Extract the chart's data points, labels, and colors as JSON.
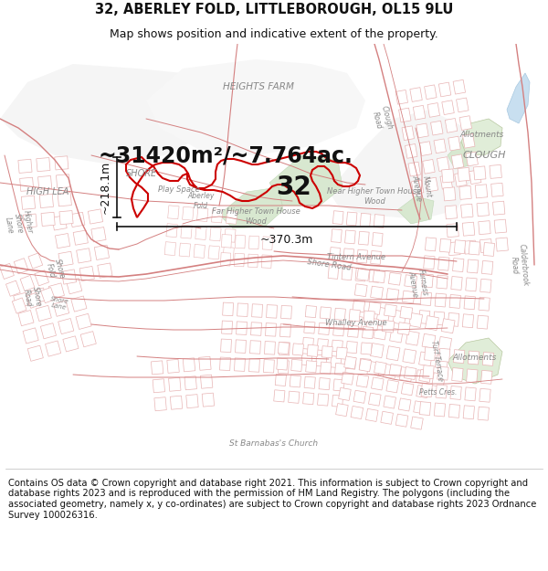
{
  "title_line1": "32, ABERLEY FOLD, LITTLEBOROUGH, OL15 9LU",
  "title_line2": "Map shows position and indicative extent of the property.",
  "footer_text": "Contains OS data © Crown copyright and database right 2021. This information is subject to Crown copyright and database rights 2023 and is reproduced with the permission of HM Land Registry. The polygons (including the associated geometry, namely x, y co-ordinates) are subject to Crown copyright and database rights 2023 Ordnance Survey 100026316.",
  "area_label": "~31420m²/~7.764ac.",
  "property_number": "32",
  "dim_horizontal": "~370.3m",
  "dim_vertical": "~218.1m",
  "bg_color": "#ffffff",
  "map_bg_color": "#ffffff",
  "road_color": "#e8b4b4",
  "road_color_dark": "#d48080",
  "highlight_color": "#d4ebd4",
  "water_color": "#c8dff0",
  "property_edge": "#cc0000",
  "title_fontsize": 10.5,
  "subtitle_fontsize": 9,
  "footer_fontsize": 7.2,
  "area_fontsize": 17,
  "label_fontsize": 7,
  "dim_fontsize": 9,
  "num_fontsize": 20
}
